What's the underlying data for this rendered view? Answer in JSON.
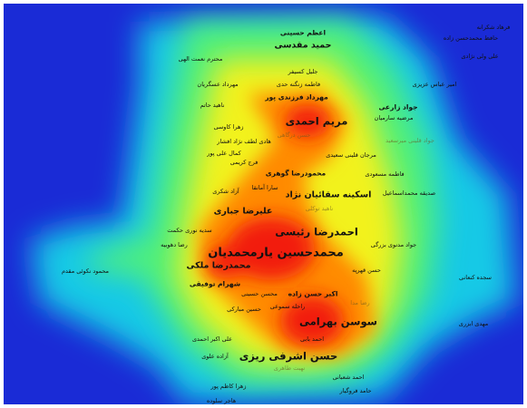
{
  "density_colors": [
    "#1a2bd6",
    "#19c9e6",
    "#4ff07a",
    "#f2f21a",
    "#ff8a00",
    "#f21c0c"
  ],
  "labels": [
    {
      "text": "فرهاد شکرانه",
      "size": 1
    },
    {
      "text": "حافظ محمدحسن زاده",
      "size": 1
    },
    {
      "text": "علی ولی نژادی",
      "size": 1
    },
    {
      "text": "اعظم حسینی",
      "size": 2
    },
    {
      "text": "حمید مقدسی",
      "size": 3
    },
    {
      "text": "محترم نعمت الهی",
      "size": 1
    },
    {
      "text": "جلیل کسیفر",
      "size": 1
    },
    {
      "text": "مهرداد عسگریان",
      "size": 1
    },
    {
      "text": "فاطمه زنگنه حدی",
      "size": 1
    },
    {
      "text": "امیر عباس عزیزی",
      "size": 1
    },
    {
      "text": "مهرداد فرزندی پور",
      "size": 2
    },
    {
      "text": "جواد زارعی",
      "size": 2
    },
    {
      "text": "ناهید حاتم",
      "size": 1
    },
    {
      "text": "مرضیه سارمیان",
      "size": 1
    },
    {
      "text": "زهرا کاوسی",
      "size": 1
    },
    {
      "text": "مریم احمدی",
      "size": 4
    },
    {
      "text": "حسن درگاهی",
      "size": 1,
      "faint": true
    },
    {
      "text": "جواد قلینی میرسعید",
      "size": 1,
      "faint": true
    },
    {
      "text": "هادی لطف نژاد افشار",
      "size": 1
    },
    {
      "text": "مرجان قلینی سعیدی",
      "size": 1
    },
    {
      "text": "کمال علی پور",
      "size": 1
    },
    {
      "text": "فرج کریمی",
      "size": 1
    },
    {
      "text": "محمودرضا گوهری",
      "size": 2
    },
    {
      "text": "فاطمه مسعودی",
      "size": 1
    },
    {
      "text": "سارا آمانقا",
      "size": 1
    },
    {
      "text": "آزاد شکری",
      "size": 1
    },
    {
      "text": "اسکینه سقائیان نژاد",
      "size": 3
    },
    {
      "text": "صدیقه محمداسماعیل",
      "size": 1
    },
    {
      "text": "ناهید توکلی",
      "size": 1,
      "faint": true
    },
    {
      "text": "علیرضا جباری",
      "size": 3
    },
    {
      "text": "سدیه نوری حکمت",
      "size": 1
    },
    {
      "text": "احمدرضا رئیسی",
      "size": 4
    },
    {
      "text": "رضا دهوبیه",
      "size": 1
    },
    {
      "text": "جواد مدنوی بزرگی",
      "size": 1
    },
    {
      "text": "محمدحسین یارمحمدیان",
      "size": 5
    },
    {
      "text": "محمود نکوئی مقدم",
      "size": 1
    },
    {
      "text": "محمدرضا ملکی",
      "size": 3
    },
    {
      "text": "حسن قهرپه",
      "size": 1
    },
    {
      "text": "سجده کنعانی",
      "size": 1
    },
    {
      "text": "شهرام توفیقی",
      "size": 2
    },
    {
      "text": "محسن حسینی",
      "size": 1
    },
    {
      "text": "اکبر حسن زاده",
      "size": 2
    },
    {
      "text": "راحله سموعی",
      "size": 1
    },
    {
      "text": "حسین مبارکی",
      "size": 1
    },
    {
      "text": "رضا مدا",
      "size": 1,
      "faint": true
    },
    {
      "text": "سوسن بهرامی",
      "size": 4
    },
    {
      "text": "مهدی ابزری",
      "size": 1
    },
    {
      "text": "علی اکبر احمدی",
      "size": 1
    },
    {
      "text": "احمد بابی",
      "size": 1
    },
    {
      "text": "آزاده علوی",
      "size": 1
    },
    {
      "text": "حسن اشرفی ریزی",
      "size": 4
    },
    {
      "text": "نهبت طاهری",
      "size": 1,
      "faint": true
    },
    {
      "text": "احمد شعبانی",
      "size": 1
    },
    {
      "text": "زهرا کاظم پور",
      "size": 1
    },
    {
      "text": "حامد فروگیار",
      "size": 1
    },
    {
      "text": "هاجر سلوده",
      "size": 1
    }
  ]
}
